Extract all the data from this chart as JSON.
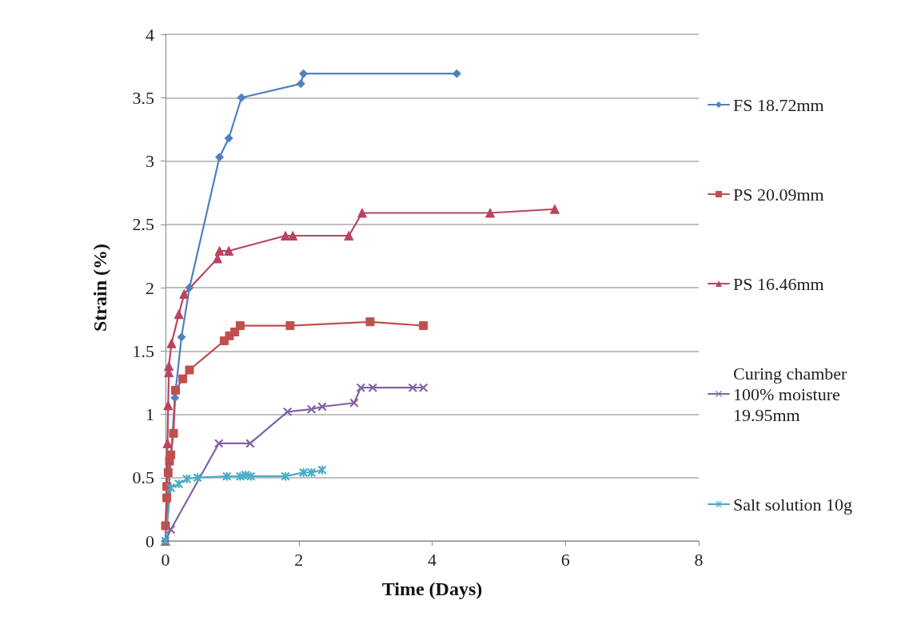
{
  "chart_data": {
    "type": "line",
    "xlabel": "Time (Days)",
    "ylabel": "Strain (%)",
    "xlim": [
      0,
      8
    ],
    "xticks": [
      0,
      2,
      4,
      6,
      8
    ],
    "ylim": [
      0,
      4
    ],
    "yticks": [
      0,
      0.5,
      1,
      1.5,
      2,
      2.5,
      3,
      3.5,
      4
    ],
    "grid": "y",
    "legend": "right",
    "series": [
      {
        "name": "FS 18.72mm",
        "color": "#4f81bd",
        "marker": "diamond",
        "x": [
          0,
          0.14,
          0.24,
          0.36,
          0.81,
          0.95,
          1.14,
          2.03,
          2.07,
          4.37
        ],
        "values": [
          0,
          1.13,
          1.61,
          2.0,
          3.03,
          3.18,
          3.5,
          3.61,
          3.69,
          3.69
        ]
      },
      {
        "name": "PS 20.09mm",
        "color": "#c0504d",
        "marker": "square",
        "x": [
          0,
          0.02,
          0.02,
          0.04,
          0.06,
          0.08,
          0.12,
          0.15,
          0.26,
          0.36,
          0.88,
          0.96,
          1.04,
          1.12,
          1.87,
          3.07,
          3.87
        ],
        "values": [
          0.12,
          0.34,
          0.43,
          0.54,
          0.63,
          0.68,
          0.85,
          1.19,
          1.28,
          1.35,
          1.58,
          1.62,
          1.65,
          1.7,
          1.7,
          1.73,
          1.7
        ]
      },
      {
        "name": "PS 16.46mm",
        "color": "#b9445f",
        "marker": "triangle",
        "x": [
          0,
          0.03,
          0.04,
          0.05,
          0.05,
          0.09,
          0.2,
          0.28,
          0.78,
          0.81,
          0.95,
          1.8,
          1.91,
          2.75,
          2.95,
          4.87,
          5.84
        ],
        "values": [
          0,
          0.77,
          1.07,
          1.33,
          1.38,
          1.56,
          1.79,
          1.95,
          2.23,
          2.29,
          2.29,
          2.41,
          2.41,
          2.41,
          2.59,
          2.59,
          2.62
        ]
      },
      {
        "name": "Curing chamber 100% moisture 19.95mm",
        "color": "#8064a2",
        "marker": "cross",
        "x": [
          0,
          0.08,
          0.8,
          1.27,
          1.83,
          2.19,
          2.35,
          2.83,
          2.93,
          3.11,
          3.71,
          3.87
        ],
        "values": [
          0,
          0.09,
          0.77,
          0.77,
          1.02,
          1.04,
          1.06,
          1.09,
          1.21,
          1.21,
          1.21,
          1.21
        ]
      },
      {
        "name": "Salt solution 10g",
        "color": "#4bacc6",
        "marker": "star",
        "x": [
          0,
          0.08,
          0.2,
          0.32,
          0.48,
          0.92,
          1.12,
          1.2,
          1.28,
          1.8,
          2.07,
          2.19,
          2.35
        ],
        "values": [
          0,
          0.42,
          0.45,
          0.49,
          0.5,
          0.51,
          0.51,
          0.52,
          0.51,
          0.51,
          0.54,
          0.54,
          0.56
        ]
      }
    ]
  }
}
